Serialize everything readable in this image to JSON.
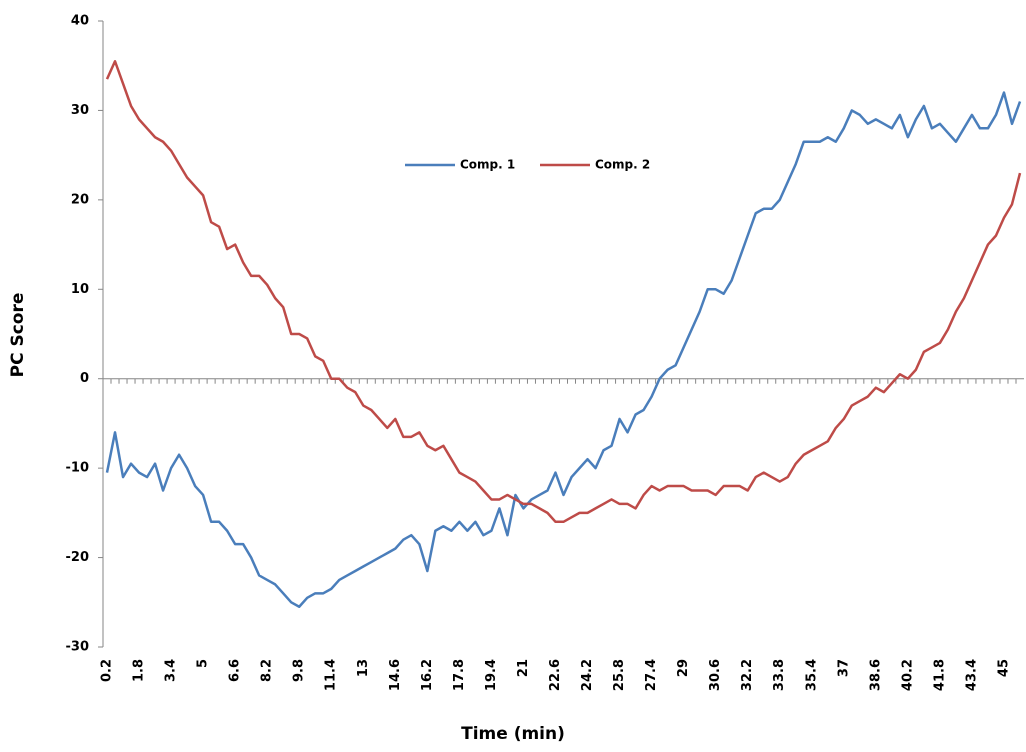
{
  "chart_data": {
    "type": "line",
    "x_label": "Time (min)",
    "y_label": "PC Score",
    "categories": [
      "0.2",
      null,
      null,
      null,
      "1.8",
      null,
      null,
      null,
      "3.4",
      null,
      null,
      null,
      "5",
      null,
      null,
      null,
      "6.6",
      null,
      null,
      null,
      "8.2",
      null,
      null,
      null,
      "9.8",
      null,
      null,
      null,
      "11.4",
      null,
      null,
      null,
      "13",
      null,
      null,
      null,
      "14.6",
      null,
      null,
      null,
      "16.2",
      null,
      null,
      null,
      "17.8",
      null,
      null,
      null,
      "19.4",
      null,
      null,
      null,
      "21",
      null,
      null,
      null,
      "22.6",
      null,
      null,
      null,
      "24.2",
      null,
      null,
      null,
      "25.8",
      null,
      null,
      null,
      "27.4",
      null,
      null,
      null,
      "29",
      null,
      null,
      null,
      "30.6",
      null,
      null,
      null,
      "32.2",
      null,
      null,
      null,
      "33.8",
      null,
      null,
      null,
      "35.4",
      null,
      null,
      null,
      "37",
      null,
      null,
      null,
      "38.6",
      null,
      null,
      null,
      "40.2",
      null,
      null,
      null,
      "41.8",
      null,
      null,
      null,
      "43.4",
      null,
      null,
      null,
      "45",
      null,
      null
    ],
    "series": [
      {
        "name": "Comp. 1",
        "color": "#4a7ebb",
        "values": [
          -10.5,
          -6,
          -11,
          -9.5,
          -10.5,
          -11,
          -9.5,
          -12.5,
          -10,
          -8.5,
          -10,
          -12,
          -13,
          -16,
          -16,
          -17,
          -18.5,
          -18.5,
          -20,
          -22,
          -22.5,
          -23,
          -24,
          -25,
          -25.5,
          -24.5,
          -24,
          -24,
          -23.5,
          -22.5,
          -22,
          -21.5,
          -21,
          -20.5,
          -20,
          -19.5,
          -19,
          -18,
          -17.5,
          -18.5,
          -21.5,
          -17,
          -16.5,
          -17,
          -16,
          -17,
          -16,
          -17.5,
          -17,
          -14.5,
          -17.5,
          -13,
          -14.5,
          -13.5,
          -13,
          -12.5,
          -10.5,
          -13,
          -11,
          -10,
          -9,
          -10,
          -8,
          -7.5,
          -4.5,
          -6,
          -4,
          -3.5,
          -2,
          0,
          1,
          1.5,
          3.5,
          5.5,
          7.5,
          10,
          10,
          9.5,
          11,
          13.5,
          16,
          18.5,
          19,
          19,
          20,
          22,
          24,
          26.5,
          26.5,
          26.5,
          27,
          26.5,
          28,
          30,
          29.5,
          28.5,
          29,
          28.5,
          28,
          29.5,
          27,
          29,
          30.5,
          28,
          28.5,
          27.5,
          26.5,
          28,
          29.5,
          28,
          28,
          29.5,
          32,
          28.5,
          31
        ]
      },
      {
        "name": "Comp. 2",
        "color": "#be4b48",
        "values": [
          33.5,
          35.5,
          33,
          30.5,
          29,
          28,
          27,
          26.5,
          25.5,
          24,
          22.5,
          21.5,
          20.5,
          17.5,
          17,
          14.5,
          15,
          13,
          11.5,
          11.5,
          10.5,
          9,
          8,
          5,
          5,
          4.5,
          2.5,
          2,
          0,
          0,
          -1,
          -1.5,
          -3,
          -3.5,
          -4.5,
          -5.5,
          -4.5,
          -6.5,
          -6.5,
          -6,
          -7.5,
          -8,
          -7.5,
          -9,
          -10.5,
          -11,
          -11.5,
          -12.5,
          -13.5,
          -13.5,
          -13,
          -13.5,
          -14,
          -14,
          -14.5,
          -15,
          -16,
          -16,
          -15.5,
          -15,
          -15,
          -14.5,
          -14,
          -13.5,
          -14,
          -14,
          -14.5,
          -13,
          -12,
          -12.5,
          -12,
          -12,
          -12,
          -12.5,
          -12.5,
          -12.5,
          -13,
          -12,
          -12,
          -12,
          -12.5,
          -11,
          -10.5,
          -11,
          -11.5,
          -11,
          -9.5,
          -8.5,
          -8,
          -7.5,
          -7,
          -5.5,
          -4.5,
          -3,
          -2.5,
          -2,
          -1,
          -1.5,
          -0.5,
          0.5,
          0,
          1,
          3,
          3.5,
          4,
          5.5,
          7.5,
          9,
          11,
          13,
          15,
          16,
          18,
          19.5,
          23
        ]
      }
    ],
    "ylim": [
      -30,
      40
    ],
    "yticks": [
      -30,
      -20,
      -10,
      0,
      10,
      20,
      30,
      40
    ],
    "grid": false,
    "legend": "top"
  }
}
